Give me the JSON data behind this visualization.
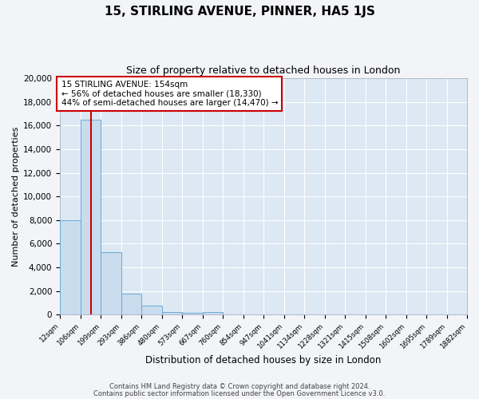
{
  "title": "15, STIRLING AVENUE, PINNER, HA5 1JS",
  "subtitle": "Size of property relative to detached houses in London",
  "xlabel": "Distribution of detached houses by size in London",
  "ylabel": "Number of detached properties",
  "bar_color": "#c9dcee",
  "bar_edge_color": "#6aaad4",
  "background_color": "#dce8f4",
  "fig_background_color": "#f2f4f8",
  "grid_color": "#ffffff",
  "bin_edges": [
    12,
    106,
    199,
    293,
    386,
    480,
    573,
    667,
    760,
    854,
    947,
    1041,
    1134,
    1228,
    1321,
    1415,
    1508,
    1602,
    1695,
    1789,
    1882
  ],
  "bar_heights": [
    8000,
    16500,
    5300,
    1750,
    750,
    250,
    150,
    200,
    0,
    0,
    0,
    0,
    0,
    0,
    0,
    0,
    0,
    0,
    0,
    0
  ],
  "property_size": 154,
  "red_line_color": "#cc0000",
  "annotation_text_line1": "15 STIRLING AVENUE: 154sqm",
  "annotation_text_line2": "← 56% of detached houses are smaller (18,330)",
  "annotation_text_line3": "44% of semi-detached houses are larger (14,470) →",
  "annotation_box_facecolor": "#ffffff",
  "annotation_box_edgecolor": "#cc0000",
  "ylim": [
    0,
    20000
  ],
  "yticks": [
    0,
    2000,
    4000,
    6000,
    8000,
    10000,
    12000,
    14000,
    16000,
    18000,
    20000
  ],
  "tick_labels": [
    "12sqm",
    "106sqm",
    "199sqm",
    "293sqm",
    "386sqm",
    "480sqm",
    "573sqm",
    "667sqm",
    "760sqm",
    "854sqm",
    "947sqm",
    "1041sqm",
    "1134sqm",
    "1228sqm",
    "1321sqm",
    "1415sqm",
    "1508sqm",
    "1602sqm",
    "1695sqm",
    "1789sqm",
    "1882sqm"
  ],
  "footer_line1": "Contains HM Land Registry data © Crown copyright and database right 2024.",
  "footer_line2": "Contains public sector information licensed under the Open Government Licence v3.0."
}
